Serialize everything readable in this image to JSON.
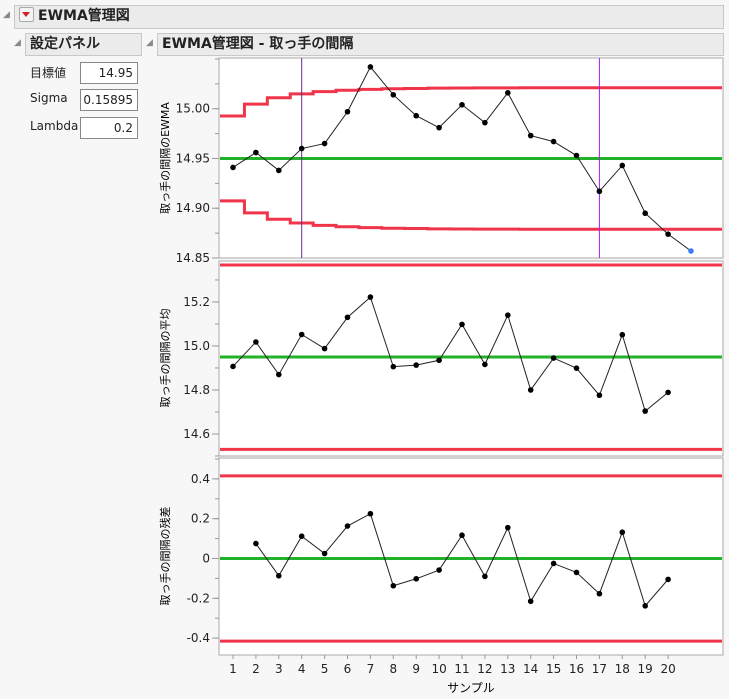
{
  "outline_title": "EWMA管理図",
  "settings": {
    "title": "設定パネル",
    "fields": [
      {
        "label": "目標値",
        "value": "14.95"
      },
      {
        "label": "Sigma",
        "value": "0.15895"
      },
      {
        "label": "Lambda",
        "value": "0.2"
      }
    ]
  },
  "chart_title": "EWMA管理図 - 取っ手の間隔",
  "colors": {
    "limit": "#f0344a",
    "center": "#22b22a",
    "marker": "#000000",
    "forecast": "#3a7ff5",
    "vline1": "#6a2a90",
    "vline2": "#a020f0"
  },
  "chart_data": [
    {
      "type": "line",
      "ylabel": "取っ手の間隔のEWMA",
      "ylim": [
        14.85,
        15.051
      ],
      "yticks": [
        "15.00",
        "14.95",
        "14.90",
        "14.85"
      ],
      "ytick_values": [
        15.0,
        14.95,
        14.9,
        14.85
      ],
      "minor_step": 0.025,
      "center": 14.95,
      "values": [
        14.941,
        14.956,
        14.938,
        14.96,
        14.965,
        14.997,
        15.042,
        15.014,
        14.993,
        14.981,
        15.004,
        14.986,
        15.016,
        14.973,
        14.967,
        14.953,
        14.917,
        14.943,
        14.895,
        14.874
      ],
      "forecast": {
        "sample": 21,
        "value": 14.857
      },
      "ucl": [
        14.9927,
        15.0046,
        15.0111,
        15.0149,
        15.0172,
        15.0186,
        15.0195,
        15.0201,
        15.0204,
        15.0207,
        15.0209,
        15.021,
        15.021,
        15.0211,
        15.0211,
        15.0211,
        15.0211,
        15.0211,
        15.0211,
        15.0211,
        15.0211
      ],
      "lcl": [
        14.9074,
        14.8954,
        14.8889,
        14.8852,
        14.8828,
        14.8814,
        14.8805,
        14.8799,
        14.8796,
        14.8793,
        14.8791,
        14.879,
        14.879,
        14.8789,
        14.8789,
        14.8789,
        14.8789,
        14.8789,
        14.8789,
        14.8789,
        14.8789
      ],
      "vlines": [
        4,
        17
      ]
    },
    {
      "type": "line",
      "ylabel": "取っ手の間隔の平均",
      "ylim": [
        14.5,
        15.386
      ],
      "yticks": [
        "15.2",
        "15.0",
        "14.8",
        "14.6"
      ],
      "ytick_values": [
        15.2,
        15.0,
        14.8,
        14.6
      ],
      "minor_step": 0.1,
      "center": 14.95,
      "ucl": 15.368,
      "lcl": 14.53,
      "values": [
        14.907,
        15.018,
        14.87,
        15.052,
        14.988,
        15.13,
        15.222,
        14.906,
        14.913,
        14.935,
        15.098,
        14.916,
        15.14,
        14.8,
        14.945,
        14.899,
        14.776,
        15.051,
        14.704,
        14.789
      ]
    },
    {
      "type": "line",
      "ylabel": "取っ手の間隔の残差",
      "ylim": [
        -0.485,
        0.505
      ],
      "yticks": [
        "0.4",
        "0.2",
        "0",
        "-0.2",
        "-0.4"
      ],
      "ytick_values": [
        0.4,
        0.2,
        0,
        -0.2,
        -0.4
      ],
      "minor_step": 0.1,
      "center": 0,
      "ucl": 0.415,
      "lcl": -0.415,
      "values": [
        null,
        0.075,
        -0.087,
        0.112,
        0.025,
        0.163,
        0.225,
        -0.137,
        -0.102,
        -0.058,
        0.117,
        -0.09,
        0.155,
        -0.215,
        -0.025,
        -0.07,
        -0.177,
        0.132,
        -0.238,
        -0.105
      ]
    }
  ],
  "xaxis": {
    "label": "サンプル",
    "ticks": [
      "1",
      "2",
      "3",
      "4",
      "5",
      "6",
      "7",
      "8",
      "9",
      "10",
      "11",
      "12",
      "13",
      "14",
      "15",
      "16",
      "17",
      "18",
      "19",
      "20"
    ]
  }
}
